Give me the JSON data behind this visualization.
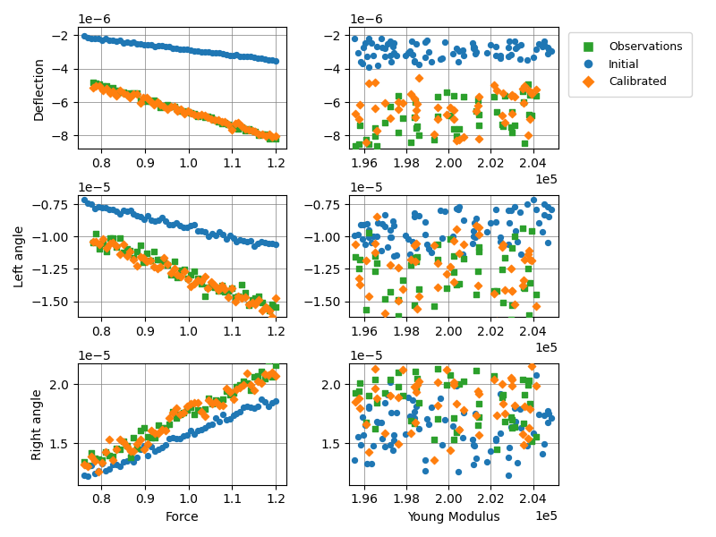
{
  "xlabels": [
    "Force",
    "Young Modulus"
  ],
  "ylabels": [
    "Deflection",
    "Left angle",
    "Right angle"
  ],
  "legend_labels": [
    "Observations",
    "Initial",
    "Calibrated"
  ],
  "colors": {
    "observations": "#2ca02c",
    "initial": "#1f77b4",
    "calibrated": "#ff7f0e"
  },
  "figsize": [
    8.0,
    6.0
  ],
  "dpi": 100,
  "force_xlim": [
    0.745,
    1.225
  ],
  "ym_xlim": [
    195300,
    205200
  ],
  "row0": {
    "ylim_left": [
      -8.8e-06,
      -1.5e-06
    ],
    "ylim_right": [
      -8.8e-06,
      -1.5e-06
    ]
  },
  "row1": {
    "ylim_left": [
      -1.62e-05,
      -6.8e-06
    ],
    "ylim_right": [
      -1.62e-05,
      -6.8e-06
    ]
  },
  "row2": {
    "ylim_left": [
      1.15e-05,
      2.18e-05
    ],
    "ylim_right": [
      1.15e-05,
      2.18e-05
    ]
  }
}
